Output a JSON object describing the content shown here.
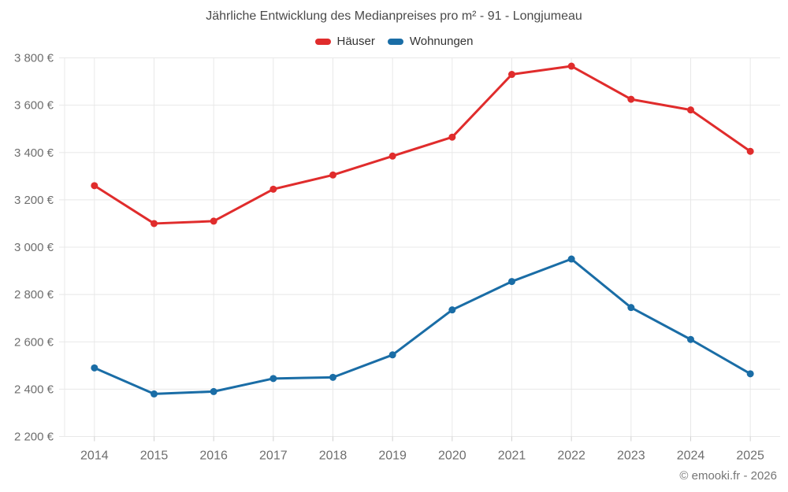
{
  "header": {
    "title": "Jährliche Entwicklung des Medianpreises pro m² - 91 - Longjumeau"
  },
  "legend": {
    "items": [
      {
        "label": "Häuser",
        "color": "#e02c2c"
      },
      {
        "label": "Wohnungen",
        "color": "#1a6da6"
      }
    ]
  },
  "footer": {
    "copyright": "© emooki.fr - 2026"
  },
  "colors": {
    "hauser": "#e02c2c",
    "wohnungen": "#1a6da6",
    "gridline": "#e8e8e8",
    "tick": "#d0d0d0",
    "axis_label": "#6e6e6e",
    "title_text": "#4a4a4a"
  },
  "chart_data": {
    "type": "line",
    "title": "Jährliche Entwicklung des Medianpreises pro m² - 91 - Longjumeau",
    "categories": [
      "2014",
      "2015",
      "2016",
      "2017",
      "2018",
      "2019",
      "2020",
      "2021",
      "2022",
      "2023",
      "2024",
      "2025"
    ],
    "series": [
      {
        "name": "Häuser",
        "color": "#e02c2c",
        "values": [
          3260,
          3100,
          3110,
          3245,
          3305,
          3385,
          3465,
          3730,
          3765,
          3625,
          3580,
          3405
        ]
      },
      {
        "name": "Wohnungen",
        "color": "#1a6da6",
        "values": [
          2490,
          2380,
          2390,
          2445,
          2450,
          2545,
          2735,
          2855,
          2950,
          2745,
          2610,
          2465
        ]
      }
    ],
    "xlabel": "",
    "ylabel": "",
    "ylim": [
      2200,
      3800
    ],
    "ytick_step": 200,
    "yticks": [
      "2 200 €",
      "2 400 €",
      "2 600 €",
      "2 800 €",
      "3 000 €",
      "3 200 €",
      "3 400 €",
      "3 600 €",
      "3 800 €"
    ],
    "grid": true,
    "legend_position": "top"
  }
}
